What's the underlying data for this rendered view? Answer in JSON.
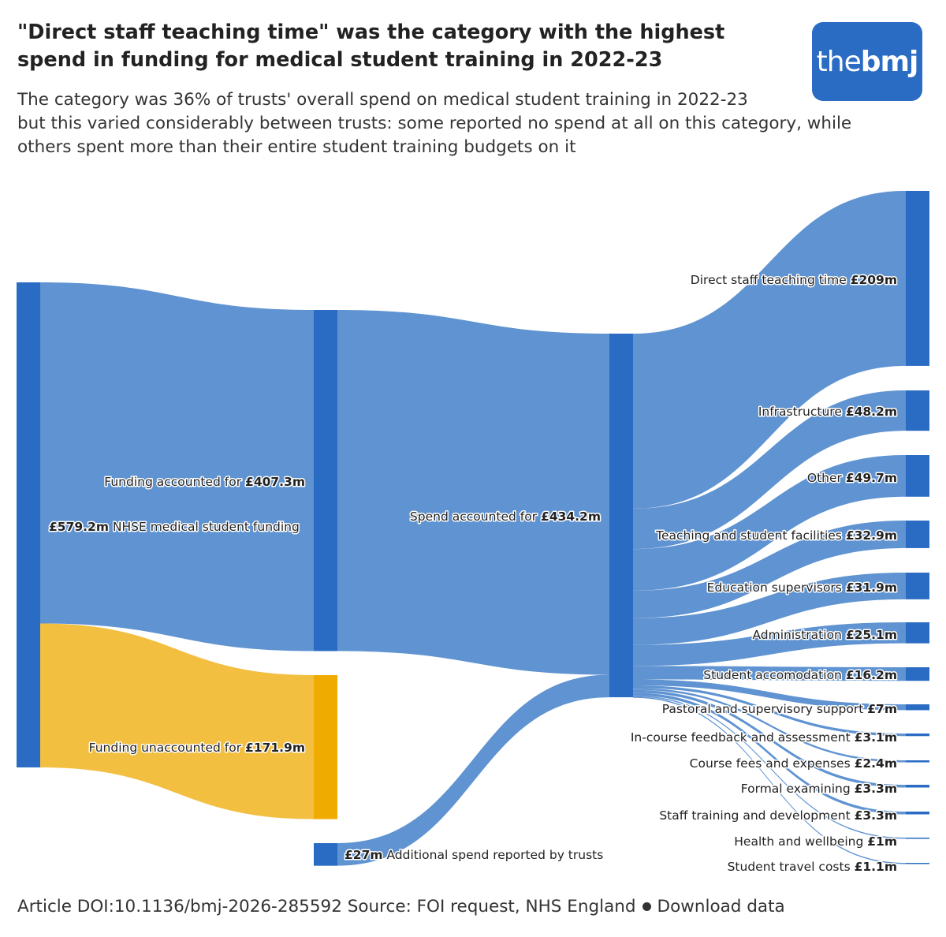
{
  "header": {
    "title": "\"Direct staff teaching time\" was the category with the highest spend in funding for medical student training in 2022-23",
    "subtitle_lines": [
      "The category was 36% of trusts' overall spend on medical student training in 2022-23",
      "but this varied considerably between trusts: some reported no spend at all on this category, while",
      "others spent more than their entire student training budgets on it"
    ]
  },
  "logo": {
    "part1": "the",
    "part2": "bmj"
  },
  "footer": {
    "doi": "Article DOI:10.1136/bmj-2026-285592",
    "source": "Source: FOI request, NHS England",
    "download": "Download data"
  },
  "colors": {
    "node": "#2a6cc3",
    "flow": "#5a8fd0",
    "unaccounted_flow": "#f2bc37",
    "unaccounted_node": "#f0ab00"
  },
  "chart_data": {
    "type": "sankey",
    "nodes": [
      {
        "id": "nhse",
        "name": "NHSE medical student funding",
        "value": 579.2,
        "value_label": "£579.2m",
        "order": "value-first"
      },
      {
        "id": "accounted",
        "name": "Funding accounted for",
        "value": 407.3,
        "value_label": "£407.3m"
      },
      {
        "id": "unaccounted",
        "name": "Funding unaccounted for",
        "value": 171.9,
        "value_label": "£171.9m"
      },
      {
        "id": "additional",
        "name": "Additional spend reported by trusts",
        "value": 27,
        "value_label": "£27m",
        "order": "value-first"
      },
      {
        "id": "spend",
        "name": "Spend accounted for",
        "value": 434.2,
        "value_label": "£434.2m"
      },
      {
        "id": "c1",
        "name": "Direct staff teaching time",
        "value": 209,
        "value_label": "£209m"
      },
      {
        "id": "c2",
        "name": "Infrastructure",
        "value": 48.2,
        "value_label": "£48.2m"
      },
      {
        "id": "c3",
        "name": "Other",
        "value": 49.7,
        "value_label": "£49.7m"
      },
      {
        "id": "c4",
        "name": "Teaching and student facilities",
        "value": 32.9,
        "value_label": "£32.9m"
      },
      {
        "id": "c5",
        "name": "Education supervisors",
        "value": 31.9,
        "value_label": "£31.9m"
      },
      {
        "id": "c6",
        "name": "Administration",
        "value": 25.1,
        "value_label": "£25.1m"
      },
      {
        "id": "c7",
        "name": "Student accomodation",
        "value": 16.2,
        "value_label": "£16.2m"
      },
      {
        "id": "c8",
        "name": "Pastoral and supervisory support",
        "value": 7,
        "value_label": "£7m"
      },
      {
        "id": "c9",
        "name": "In-course feedback and assessment",
        "value": 3.1,
        "value_label": "£3.1m"
      },
      {
        "id": "c10",
        "name": "Course fees and expenses",
        "value": 2.4,
        "value_label": "£2.4m"
      },
      {
        "id": "c11",
        "name": "Formal examining",
        "value": 3.3,
        "value_label": "£3.3m"
      },
      {
        "id": "c12",
        "name": "Staff training and development",
        "value": 3.3,
        "value_label": "£3.3m"
      },
      {
        "id": "c13",
        "name": "Health and wellbeing",
        "value": 1,
        "value_label": "£1m"
      },
      {
        "id": "c14",
        "name": "Student travel costs",
        "value": 1.1,
        "value_label": "£1.1m"
      }
    ],
    "links": [
      {
        "source": "nhse",
        "target": "accounted",
        "value": 407.3
      },
      {
        "source": "nhse",
        "target": "unaccounted",
        "value": 171.9
      },
      {
        "source": "accounted",
        "target": "spend",
        "value": 407.3
      },
      {
        "source": "additional",
        "target": "spend",
        "value": 27
      },
      {
        "source": "spend",
        "target": "c1",
        "value": 209
      },
      {
        "source": "spend",
        "target": "c2",
        "value": 48.2
      },
      {
        "source": "spend",
        "target": "c3",
        "value": 49.7
      },
      {
        "source": "spend",
        "target": "c4",
        "value": 32.9
      },
      {
        "source": "spend",
        "target": "c5",
        "value": 31.9
      },
      {
        "source": "spend",
        "target": "c6",
        "value": 25.1
      },
      {
        "source": "spend",
        "target": "c7",
        "value": 16.2
      },
      {
        "source": "spend",
        "target": "c8",
        "value": 7
      },
      {
        "source": "spend",
        "target": "c9",
        "value": 3.1
      },
      {
        "source": "spend",
        "target": "c10",
        "value": 2.4
      },
      {
        "source": "spend",
        "target": "c11",
        "value": 3.3
      },
      {
        "source": "spend",
        "target": "c12",
        "value": 3.3
      },
      {
        "source": "spend",
        "target": "c13",
        "value": 1
      },
      {
        "source": "spend",
        "target": "c14",
        "value": 1.1
      }
    ]
  }
}
